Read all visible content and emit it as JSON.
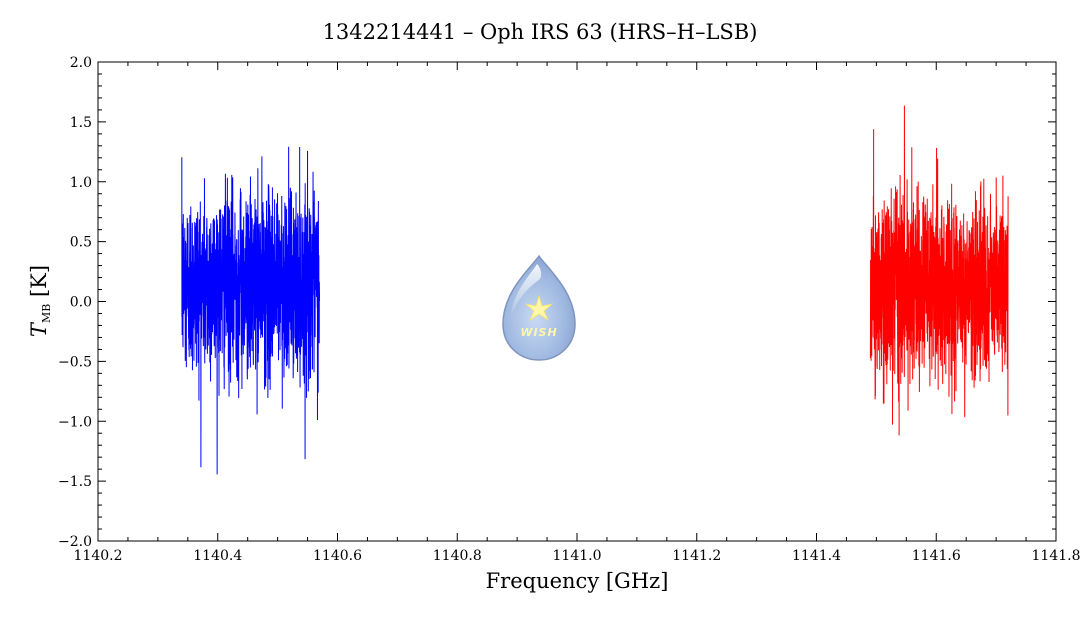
{
  "chart_data": {
    "type": "line",
    "title": "1342214441 – Oph IRS 63 (HRS–H–LSB)",
    "xlabel": "Frequency [GHz]",
    "ylabel": {
      "main": "T",
      "sub": "MB",
      "unit": "[K]"
    },
    "xlim": [
      1140.2,
      1141.8
    ],
    "ylim": [
      -2.0,
      2.0
    ],
    "x_ticks": [
      "1140.2",
      "1140.4",
      "1140.6",
      "1140.8",
      "1141.0",
      "1141.2",
      "1141.4",
      "1141.6",
      "1141.8"
    ],
    "y_ticks": [
      "-2.0",
      "-1.5",
      "-1.0",
      "-0.5",
      "0.0",
      "0.5",
      "1.0",
      "1.5",
      "2.0"
    ],
    "grid": false,
    "series": [
      {
        "color": "#0000ff",
        "x_range": [
          1140.34,
          1140.57
        ],
        "center": 0.15,
        "noise_rms": 0.38,
        "min": -1.5,
        "max": 1.78
      },
      {
        "color": "#ff0000",
        "x_range": [
          1141.49,
          1141.72
        ],
        "center": 0.1,
        "noise_rms": 0.38,
        "min": -1.54,
        "max": 1.67
      }
    ]
  },
  "logo": {
    "text": "WISH",
    "icon": "water-drop-star-icon"
  }
}
